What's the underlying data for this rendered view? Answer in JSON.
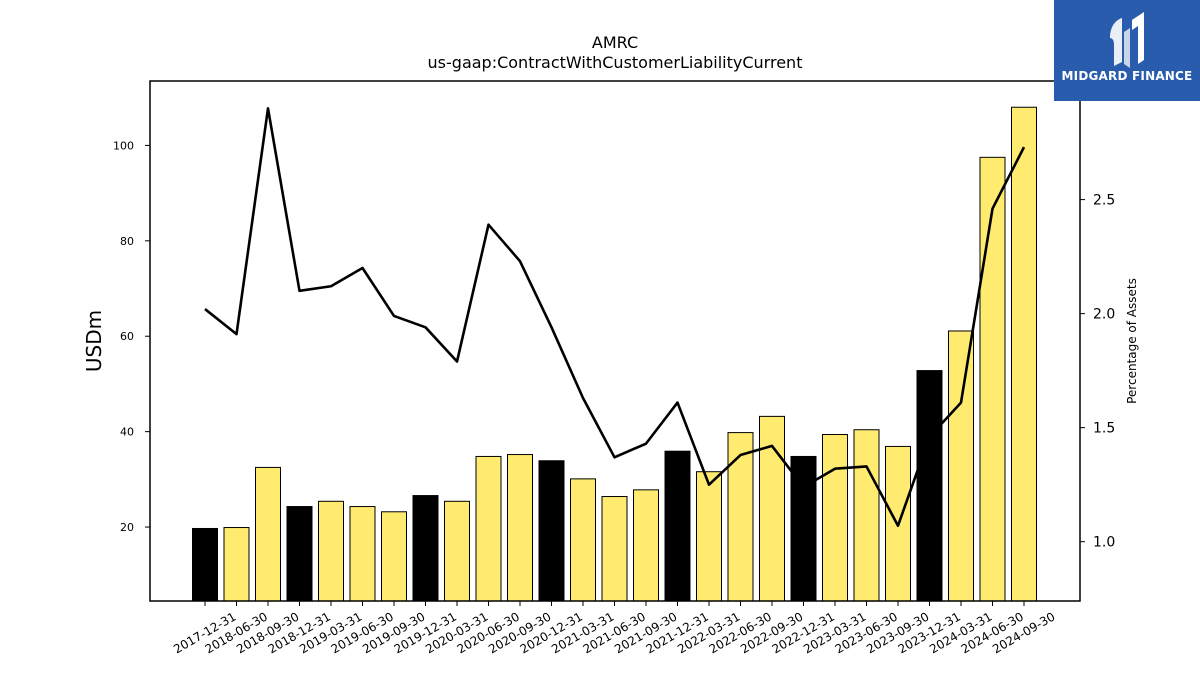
{
  "title": "AMRC",
  "subtitle": "us-gaap:ContractWithCustomerLiabilityCurrent",
  "brand": {
    "name": "MIDGARD FINANCE",
    "color": "#2a5cad",
    "icon": "midgard-logo-icon"
  },
  "colors": {
    "bar_highlight": "#000000",
    "bar_default": "#ffeb70",
    "line": "#000000"
  },
  "chart_data": {
    "type": "bar",
    "categories": [
      "2017-12-31",
      "2018-06-30",
      "2018-09-30",
      "2018-12-31",
      "2019-03-31",
      "2019-06-30",
      "2019-09-30",
      "2019-12-31",
      "2020-03-31",
      "2020-06-30",
      "2020-09-30",
      "2020-12-31",
      "2021-03-31",
      "2021-06-30",
      "2021-09-30",
      "2021-12-31",
      "2022-03-31",
      "2022-06-30",
      "2022-09-30",
      "2022-12-31",
      "2023-03-31",
      "2023-06-30",
      "2023-09-30",
      "2023-12-31",
      "2024-03-31",
      "2024-06-30",
      "2024-09-30"
    ],
    "values": [
      19.7,
      19.9,
      32.5,
      24.3,
      25.4,
      24.3,
      23.2,
      26.6,
      25.4,
      34.8,
      35.2,
      33.9,
      30.1,
      26.4,
      27.8,
      35.9,
      31.6,
      39.8,
      43.2,
      34.8,
      39.4,
      40.4,
      36.9,
      52.8,
      61.1,
      97.5,
      108.0
    ],
    "highlight": [
      true,
      false,
      false,
      true,
      false,
      false,
      false,
      true,
      false,
      false,
      false,
      true,
      false,
      false,
      false,
      true,
      false,
      false,
      false,
      true,
      false,
      false,
      false,
      true,
      false,
      false,
      false
    ],
    "ylabel": "USDm",
    "ylim": [
      4.5,
      113.5
    ],
    "yticks": [
      20,
      40,
      60,
      80,
      100
    ],
    "secondary": {
      "type": "line",
      "ylabel": "Percentage of Assets",
      "values": [
        2.02,
        1.91,
        2.9,
        2.1,
        2.12,
        2.2,
        1.99,
        1.94,
        1.79,
        2.39,
        2.23,
        1.94,
        1.63,
        1.37,
        1.43,
        1.61,
        1.25,
        1.38,
        1.42,
        1.24,
        1.32,
        1.33,
        1.07,
        1.46,
        1.61,
        2.46,
        2.73
      ],
      "ylim": [
        0.74,
        3.02
      ],
      "yticks": [
        "1.0",
        "1.5",
        "2.0",
        "2.5"
      ]
    },
    "grid": false,
    "legend": "none"
  }
}
